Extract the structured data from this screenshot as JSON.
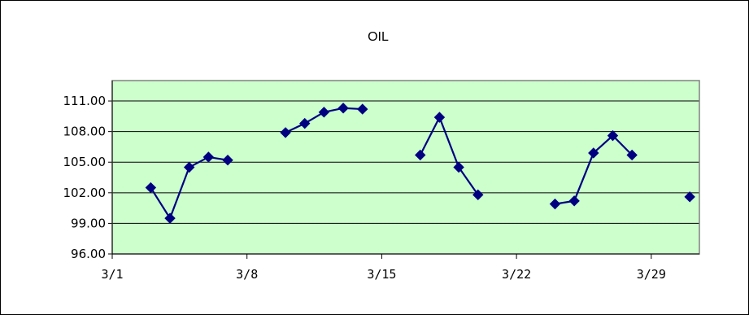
{
  "chart_data": {
    "type": "line",
    "title": "OIL",
    "xlabel": "",
    "ylabel": "",
    "ylim": [
      96,
      113
    ],
    "yticks": [
      "96.00",
      "99.00",
      "102.00",
      "105.00",
      "108.00",
      "111.00"
    ],
    "ytick_values": [
      96,
      99,
      102,
      105,
      108,
      111
    ],
    "xticks": [
      "3/1",
      "3/8",
      "3/15",
      "3/22",
      "3/29"
    ],
    "xtick_days": [
      1,
      8,
      15,
      22,
      29
    ],
    "xlim_days": [
      1,
      31.5
    ],
    "grid": true,
    "legend": "none",
    "colors": {
      "series": "#000080",
      "plot_bg": "#ccffcc",
      "grid": "#000000"
    },
    "series": [
      {
        "points": [
          {
            "date": "3/3",
            "y": 102.5
          },
          {
            "date": "3/4",
            "y": 99.5
          },
          {
            "date": "3/5",
            "y": 104.5
          },
          {
            "date": "3/6",
            "y": 105.5
          },
          {
            "date": "3/7",
            "y": 105.2
          },
          {
            "date": "3/8",
            "y": null
          },
          {
            "date": "3/9",
            "y": null
          },
          {
            "date": "3/10",
            "y": 107.9
          },
          {
            "date": "3/11",
            "y": 108.8
          },
          {
            "date": "3/12",
            "y": 109.9
          },
          {
            "date": "3/13",
            "y": 110.3
          },
          {
            "date": "3/14",
            "y": 110.2
          },
          {
            "date": "3/15",
            "y": null
          },
          {
            "date": "3/16",
            "y": null
          },
          {
            "date": "3/17",
            "y": 105.7
          },
          {
            "date": "3/18",
            "y": 109.4
          },
          {
            "date": "3/19",
            "y": 104.5
          },
          {
            "date": "3/20",
            "y": 101.8
          },
          {
            "date": "3/21",
            "y": null
          },
          {
            "date": "3/22",
            "y": null
          },
          {
            "date": "3/23",
            "y": null
          },
          {
            "date": "3/24",
            "y": 100.9
          },
          {
            "date": "3/25",
            "y": 101.2
          },
          {
            "date": "3/26",
            "y": 105.9
          },
          {
            "date": "3/27",
            "y": 107.6
          },
          {
            "date": "3/28",
            "y": 105.7
          },
          {
            "date": "3/29",
            "y": null
          },
          {
            "date": "3/30",
            "y": null
          },
          {
            "date": "3/31",
            "y": 101.6
          }
        ]
      }
    ]
  }
}
